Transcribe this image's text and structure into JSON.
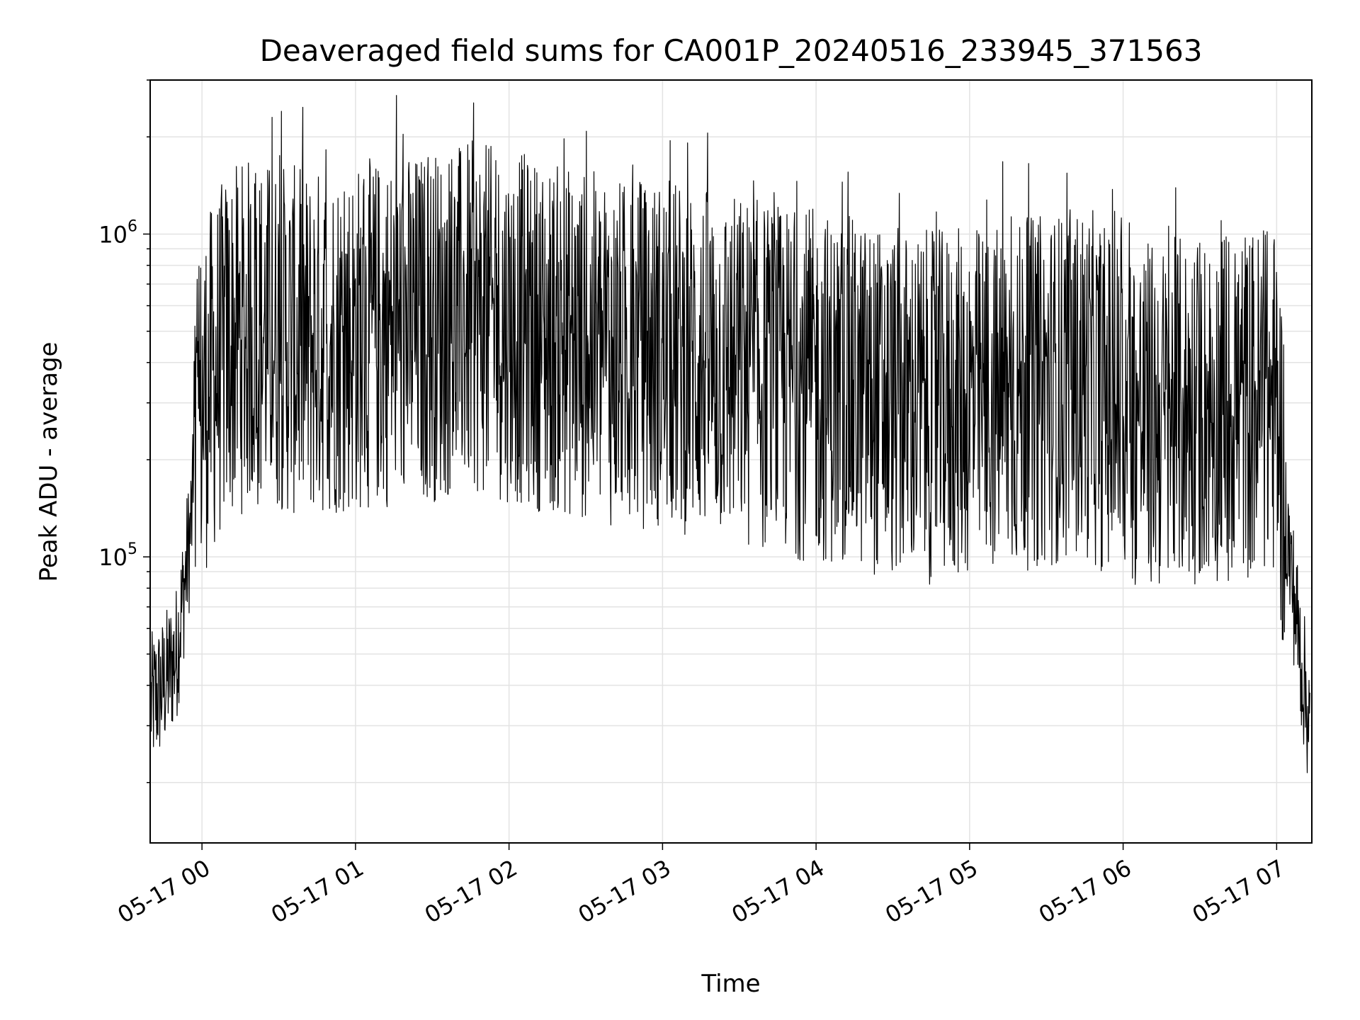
{
  "chart_data": {
    "type": "line",
    "title": "Deaveraged field sums for CA001P_20240516_233945_371563",
    "xlabel": "Time",
    "ylabel": "Peak ADU - average",
    "yscale": "log",
    "ylim": [
      13000,
      3000000
    ],
    "xlim": [
      "2024-05-16T23:39:45",
      "2024-05-17T07:13:45"
    ],
    "grid": true,
    "x_ticks": [
      {
        "value": "2024-05-17T00:00:00",
        "label": "05-17 00"
      },
      {
        "value": "2024-05-17T01:00:00",
        "label": "05-17 01"
      },
      {
        "value": "2024-05-17T02:00:00",
        "label": "05-17 02"
      },
      {
        "value": "2024-05-17T03:00:00",
        "label": "05-17 03"
      },
      {
        "value": "2024-05-17T04:00:00",
        "label": "05-17 04"
      },
      {
        "value": "2024-05-17T05:00:00",
        "label": "05-17 05"
      },
      {
        "value": "2024-05-17T06:00:00",
        "label": "05-17 06"
      },
      {
        "value": "2024-05-17T07:00:00",
        "label": "05-17 07"
      }
    ],
    "y_ticks": [
      {
        "value": 100000,
        "base": "10",
        "exp": "5"
      },
      {
        "value": 1000000,
        "base": "10",
        "exp": "6"
      }
    ],
    "series": [
      {
        "color": "#000000",
        "x": [
          "2024-05-16T23:40:00",
          "2024-05-16T23:45:00",
          "2024-05-16T23:50:00",
          "2024-05-16T23:55:00",
          "2024-05-17T00:00:00",
          "2024-05-17T00:10:00",
          "2024-05-17T00:20:00",
          "2024-05-17T00:30:00",
          "2024-05-17T00:40:00",
          "2024-05-17T00:50:00",
          "2024-05-17T01:00:00",
          "2024-05-17T01:15:00",
          "2024-05-17T01:30:00",
          "2024-05-17T01:45:00",
          "2024-05-17T02:00:00",
          "2024-05-17T02:15:00",
          "2024-05-17T02:30:00",
          "2024-05-17T02:45:00",
          "2024-05-17T03:00:00",
          "2024-05-17T03:15:00",
          "2024-05-17T03:30:00",
          "2024-05-17T03:45:00",
          "2024-05-17T04:00:00",
          "2024-05-17T04:15:00",
          "2024-05-17T04:30:00",
          "2024-05-17T04:45:00",
          "2024-05-17T05:00:00",
          "2024-05-17T05:15:00",
          "2024-05-17T05:30:00",
          "2024-05-17T05:45:00",
          "2024-05-17T06:00:00",
          "2024-05-17T06:15:00",
          "2024-05-17T06:30:00",
          "2024-05-17T06:45:00",
          "2024-05-17T07:00:00",
          "2024-05-17T07:05:00",
          "2024-05-17T07:10:00",
          "2024-05-17T07:13:00"
        ],
        "y": [
          35000,
          40000,
          50000,
          110000,
          300000,
          450000,
          500000,
          480000,
          450000,
          470000,
          480000,
          500000,
          520000,
          550000,
          520000,
          480000,
          450000,
          420000,
          430000,
          400000,
          380000,
          350000,
          340000,
          320000,
          300000,
          290000,
          300000,
          310000,
          330000,
          350000,
          280000,
          270000,
          290000,
          300000,
          300000,
          100000,
          45000,
          30000
        ]
      }
    ]
  }
}
